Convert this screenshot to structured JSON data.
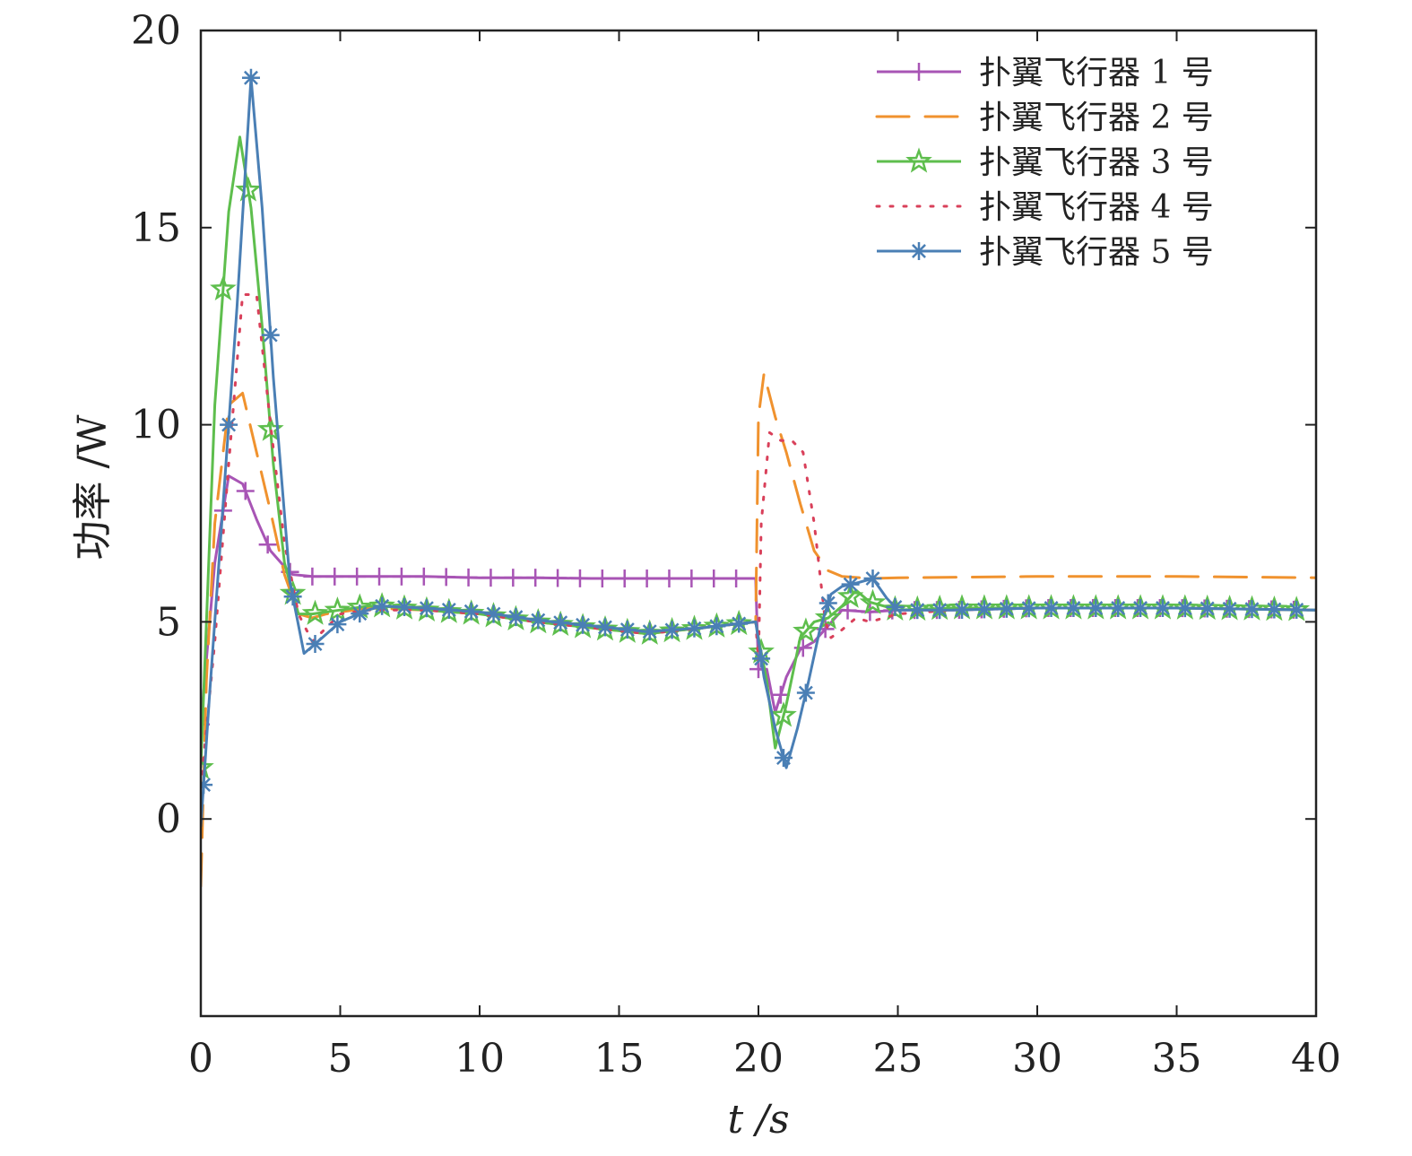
{
  "chart_data": {
    "type": "line",
    "xlabel": "t /s",
    "ylabel": "功率 /W",
    "xlim": [
      0,
      40
    ],
    "ylim": [
      -5,
      20
    ],
    "x_ticks": [
      "0",
      "5",
      "10",
      "15",
      "20",
      "25",
      "30",
      "35",
      "40"
    ],
    "y_ticks": [
      "0",
      "5",
      "10",
      "15",
      "20"
    ],
    "grid": false,
    "legend_position": "top-right",
    "series": [
      {
        "name": "扑翼飞行器 1 号",
        "color": "#a855b5",
        "dash": "",
        "marker": "plus",
        "x": [
          0,
          0.5,
          1,
          1.5,
          2,
          2.5,
          3,
          3.3,
          4,
          5,
          6,
          8,
          10,
          12,
          14,
          16,
          18,
          19.9,
          20,
          20.3,
          20.6,
          21,
          21.5,
          22,
          22.5,
          23,
          24,
          25,
          27,
          30,
          35,
          40
        ],
        "y": [
          2.4,
          6.5,
          8.7,
          8.5,
          7.6,
          6.8,
          6.4,
          6.2,
          6.15,
          6.15,
          6.15,
          6.15,
          6.12,
          6.12,
          6.1,
          6.1,
          6.1,
          6.1,
          3.8,
          3.8,
          2.7,
          3.6,
          4.3,
          4.5,
          4.9,
          5.3,
          5.25,
          5.3,
          5.3,
          5.35,
          5.35,
          5.3
        ],
        "marker_x": [
          0,
          0.8,
          1.6,
          2.4,
          3.2,
          4,
          4.8,
          5.6,
          6.4,
          7.2,
          8,
          8.8,
          9.6,
          10.4,
          11.2,
          12,
          12.8,
          13.6,
          14.4,
          15.2,
          16,
          16.8,
          17.6,
          18.4,
          19.2,
          20,
          20.8,
          21.6,
          22.4,
          23.2,
          24,
          24.8,
          25.6,
          26.4,
          27.2,
          28,
          28.8,
          29.6,
          30.4,
          31.2,
          32,
          32.8,
          33.6,
          34.4,
          35.2,
          36,
          36.8,
          37.6,
          38.4,
          39.2
        ]
      },
      {
        "name": "扑翼飞行器 2 号",
        "color": "#f0922e",
        "dash": "36,18",
        "marker": "none",
        "x": [
          0,
          0.2,
          0.5,
          1,
          1.5,
          2,
          2.5,
          3,
          3.5,
          4,
          4.5,
          5,
          6,
          8,
          10,
          12,
          14,
          16,
          18,
          19.9,
          20,
          20.2,
          20.6,
          21,
          21.5,
          22,
          22.5,
          23,
          24,
          25,
          30,
          35,
          40
        ],
        "y": [
          -1.7,
          3.5,
          7.5,
          10.5,
          10.8,
          9.3,
          7.8,
          6.2,
          5.2,
          5.1,
          5.2,
          5.25,
          5.35,
          5.3,
          5.2,
          5.0,
          4.85,
          4.7,
          4.85,
          5.0,
          10.2,
          11.3,
          10.2,
          9.3,
          8.0,
          6.8,
          6.3,
          6.15,
          6.1,
          6.12,
          6.15,
          6.15,
          6.12
        ]
      },
      {
        "name": "扑翼飞行器 3 号",
        "color": "#5ebe4d",
        "dash": "",
        "marker": "star",
        "x": [
          0,
          0.5,
          1,
          1.4,
          1.8,
          2.2,
          2.6,
          3,
          3.5,
          4,
          5,
          6,
          6.5,
          8,
          10,
          12,
          14,
          16,
          18,
          19.9,
          20,
          20.3,
          20.6,
          21,
          21.5,
          22,
          22.5,
          23,
          23.5,
          24,
          25,
          27,
          30,
          35,
          40
        ],
        "y": [
          1.3,
          10.5,
          15.4,
          17.3,
          15.5,
          12.5,
          9.0,
          6.5,
          5.2,
          5.2,
          5.3,
          5.4,
          5.4,
          5.3,
          5.2,
          5.0,
          4.85,
          4.7,
          4.85,
          5.0,
          4.6,
          3.5,
          1.8,
          2.9,
          4.6,
          5.0,
          5.1,
          5.4,
          5.8,
          5.5,
          5.3,
          5.35,
          5.35,
          5.35,
          5.3
        ],
        "marker_x": [
          0,
          0.8,
          1.7,
          2.5,
          3.3,
          4.1,
          4.9,
          5.7,
          6.5,
          7.3,
          8.1,
          8.9,
          9.7,
          10.5,
          11.3,
          12.1,
          12.9,
          13.7,
          14.5,
          15.3,
          16.1,
          16.9,
          17.7,
          18.5,
          19.3,
          20.1,
          20.9,
          21.7,
          22.5,
          23.3,
          24.1,
          24.9,
          25.7,
          26.5,
          27.3,
          28.1,
          28.9,
          29.7,
          30.5,
          31.3,
          32.1,
          32.9,
          33.7,
          34.5,
          35.3,
          36.1,
          36.9,
          37.7,
          38.5,
          39.3
        ]
      },
      {
        "name": "扑翼飞行器 4 号",
        "color": "#d9405a",
        "dash": "3,12",
        "marker": "none",
        "x": [
          0,
          0.5,
          1,
          1.5,
          2,
          2.5,
          3,
          3.5,
          4,
          5,
          6,
          8,
          10,
          12,
          14,
          16,
          18,
          19.9,
          20,
          20.1,
          20.4,
          20.8,
          21.2,
          21.6,
          22,
          22.4,
          22.6,
          23,
          23.5,
          24,
          25,
          27,
          30,
          35,
          40
        ],
        "y": [
          0.8,
          4.5,
          9.0,
          13.3,
          13.3,
          10.0,
          7.0,
          5.2,
          4.5,
          5.2,
          5.3,
          5.3,
          5.2,
          5.0,
          4.85,
          4.7,
          4.85,
          5.0,
          4.0,
          7.5,
          9.8,
          9.6,
          9.6,
          9.3,
          7.5,
          5.0,
          4.6,
          4.8,
          5.1,
          5.0,
          5.2,
          5.3,
          5.35,
          5.35,
          5.3
        ]
      },
      {
        "name": "扑翼飞行器 5 号",
        "color": "#4a7fb5",
        "dash": "",
        "marker": "asterisk",
        "x": [
          0,
          0.3,
          0.8,
          1.3,
          1.8,
          2.2,
          2.6,
          3.2,
          3.7,
          4.2,
          5,
          6,
          6.5,
          8,
          10,
          12,
          14,
          16,
          18,
          19.9,
          20.2,
          20.6,
          21,
          21.4,
          21.8,
          22.2,
          22.6,
          23,
          23.6,
          24.1,
          24.6,
          25,
          27,
          30,
          35,
          40
        ],
        "y": [
          -0.2,
          3.0,
          8.0,
          13.0,
          18.8,
          15.5,
          11.2,
          6.0,
          4.2,
          4.5,
          5.0,
          5.3,
          5.4,
          5.35,
          5.25,
          5.05,
          4.9,
          4.75,
          4.85,
          5.0,
          3.6,
          2.3,
          1.3,
          2.3,
          3.5,
          4.8,
          5.7,
          5.9,
          6.0,
          6.1,
          5.6,
          5.3,
          5.3,
          5.35,
          5.35,
          5.3
        ],
        "marker_x": [
          0.1,
          1.0,
          1.8,
          2.5,
          3.3,
          4.1,
          4.9,
          5.7,
          6.5,
          7.3,
          8.1,
          8.9,
          9.7,
          10.5,
          11.3,
          12.1,
          12.9,
          13.7,
          14.5,
          15.3,
          16.1,
          16.9,
          17.7,
          18.5,
          19.3,
          20.1,
          20.9,
          21.7,
          22.5,
          23.3,
          24.1,
          24.9,
          25.7,
          26.5,
          27.3,
          28.1,
          28.9,
          29.7,
          30.5,
          31.3,
          32.1,
          32.9,
          33.7,
          34.5,
          35.3,
          36.1,
          36.9,
          37.7,
          38.5,
          39.3
        ]
      }
    ]
  }
}
